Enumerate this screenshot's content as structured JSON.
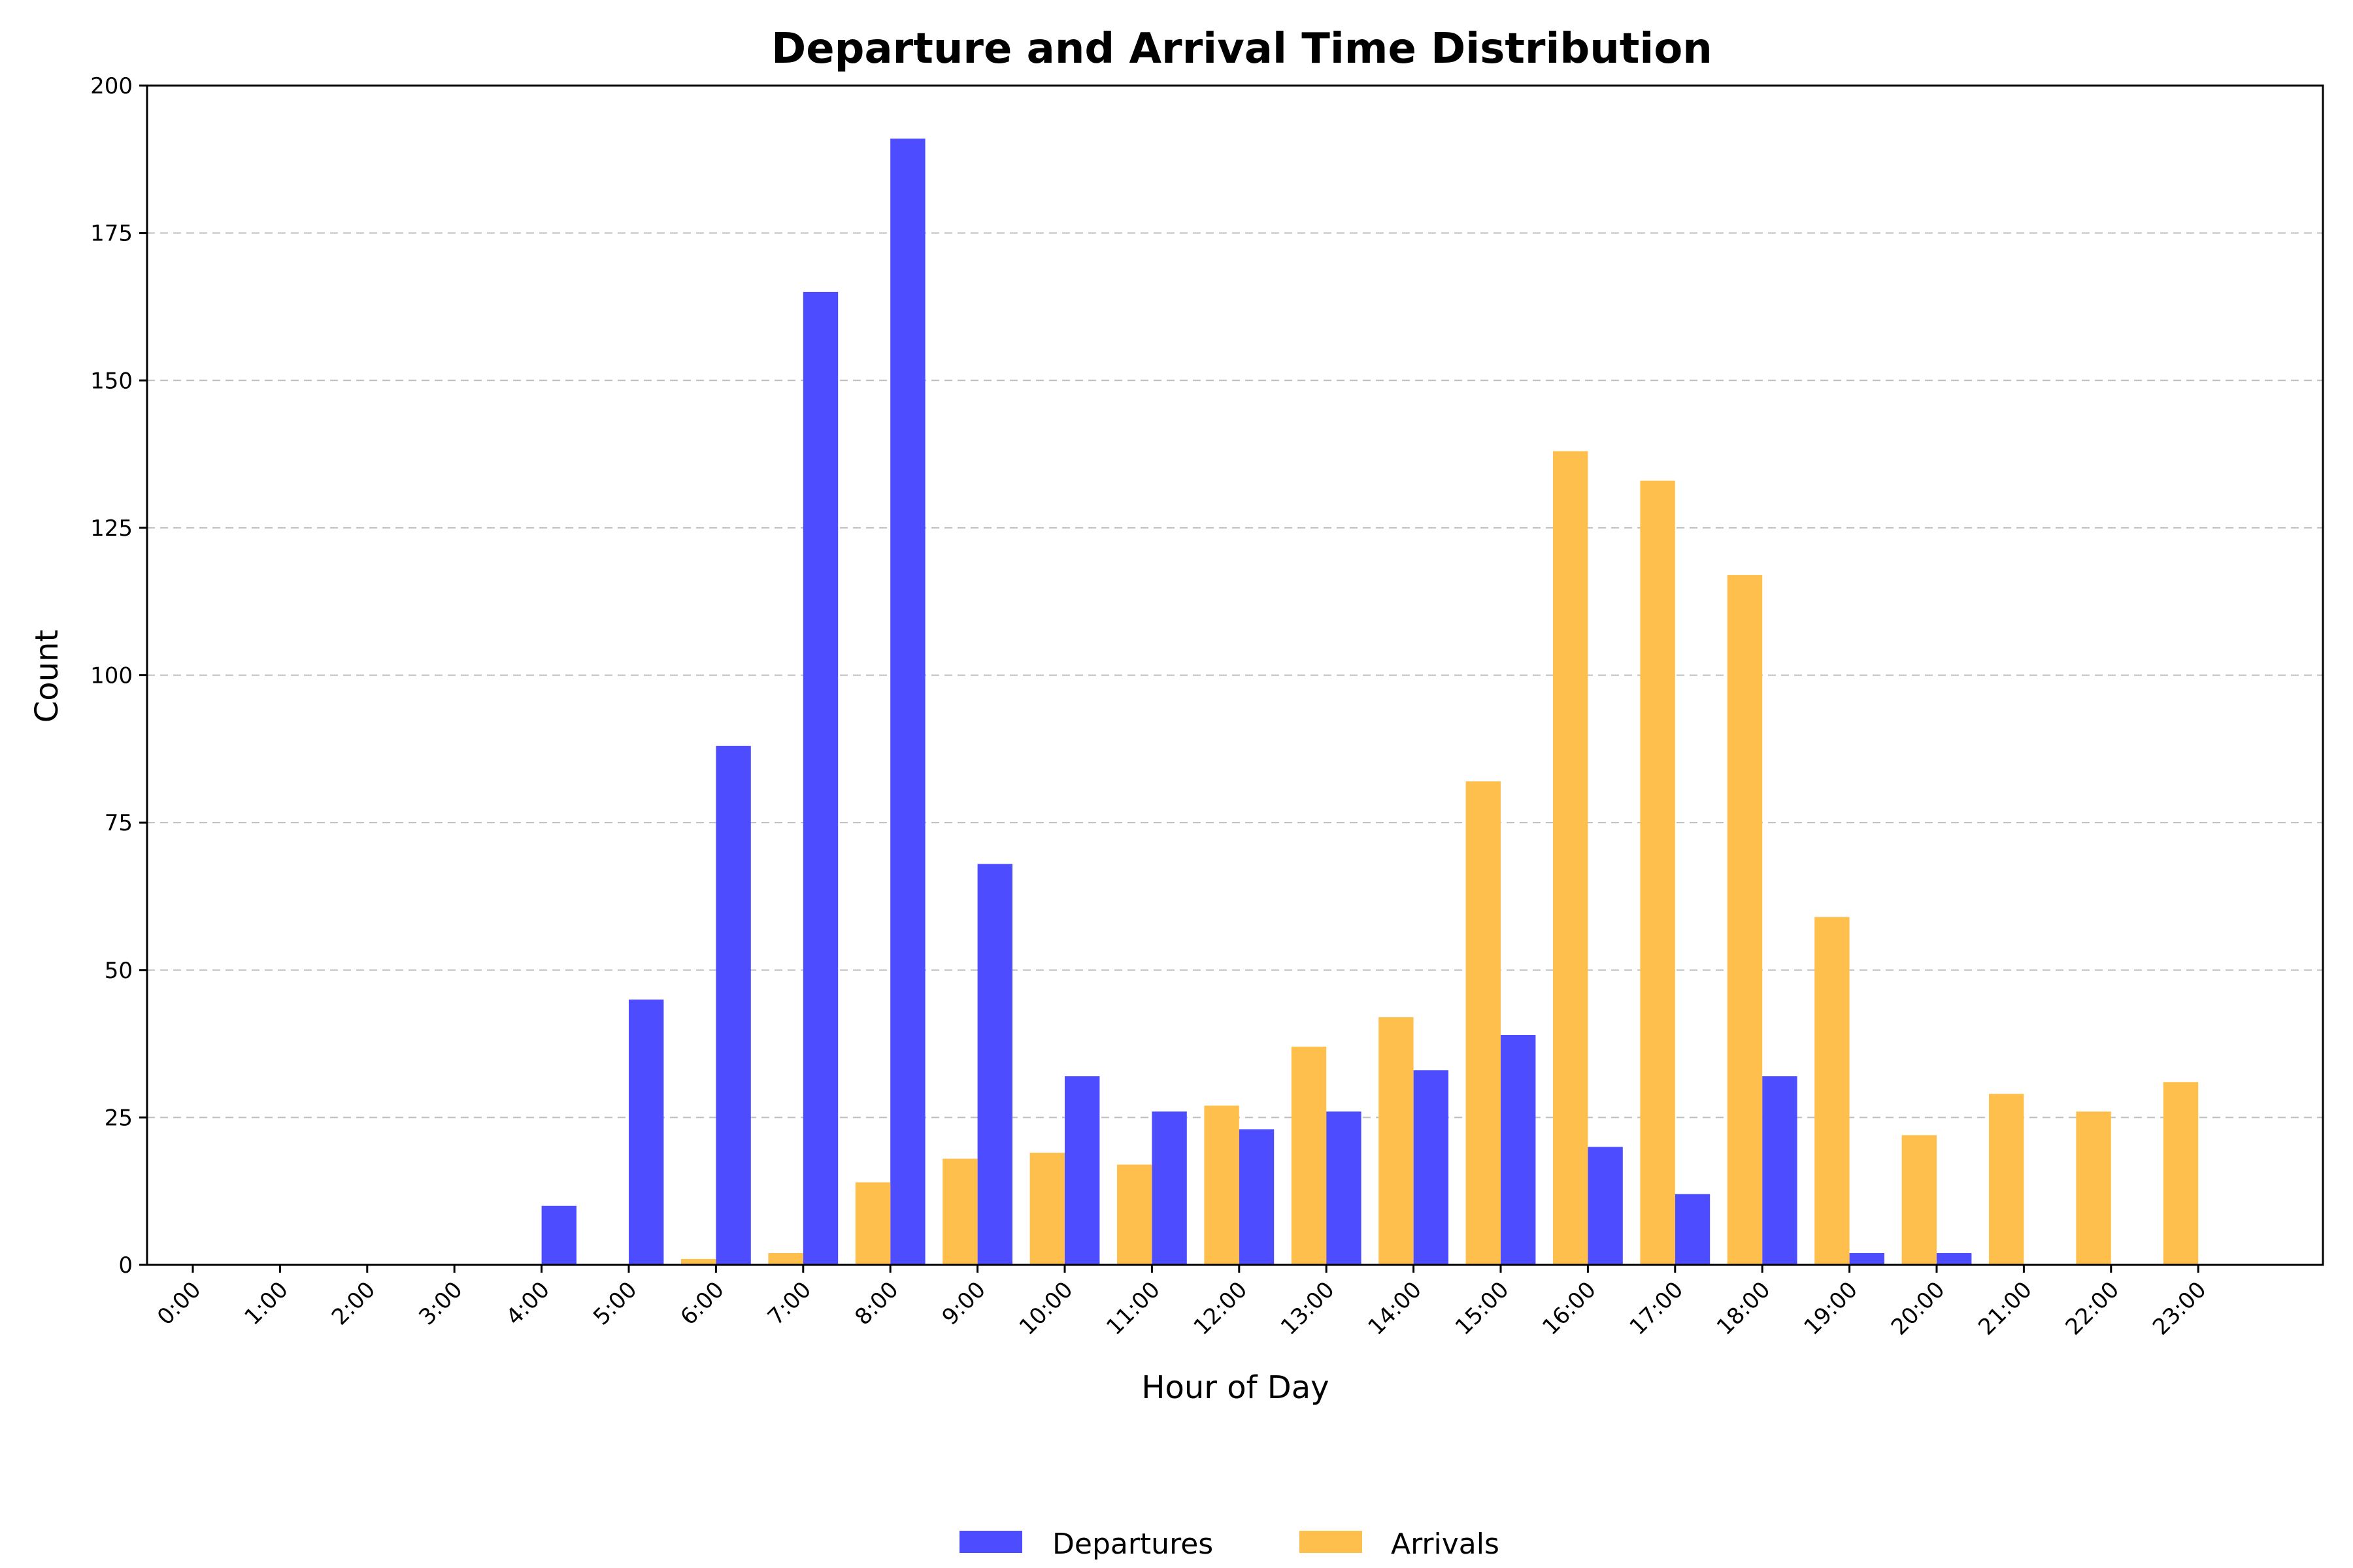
{
  "chart_data": {
    "type": "bar",
    "title": "Departure and Arrival Time Distribution",
    "xlabel": "Hour of Day",
    "ylabel": "Count",
    "ylim": [
      0,
      200
    ],
    "yticks": [
      "0",
      "25",
      "50",
      "75",
      "100",
      "125",
      "150",
      "175",
      "200"
    ],
    "categories": [
      "0:00",
      "1:00",
      "2:00",
      "3:00",
      "4:00",
      "5:00",
      "6:00",
      "7:00",
      "8:00",
      "9:00",
      "10:00",
      "11:00",
      "12:00",
      "13:00",
      "14:00",
      "15:00",
      "16:00",
      "17:00",
      "18:00",
      "19:00",
      "20:00",
      "21:00",
      "22:00",
      "23:00"
    ],
    "series": [
      {
        "name": "Departures",
        "color": "#4d4dff",
        "values": [
          0,
          0,
          0,
          0,
          10,
          45,
          88,
          165,
          191,
          68,
          32,
          26,
          23,
          26,
          33,
          39,
          20,
          12,
          32,
          2,
          2,
          0,
          0,
          0
        ]
      },
      {
        "name": "Arrivals",
        "color": "#ffbf4d",
        "values": [
          0,
          0,
          0,
          0,
          0,
          0,
          1,
          2,
          14,
          18,
          19,
          17,
          27,
          37,
          42,
          82,
          138,
          133,
          117,
          59,
          22,
          29,
          26,
          31
        ]
      }
    ],
    "grid": "y-dashed",
    "legend_position": "bottom-center"
  }
}
